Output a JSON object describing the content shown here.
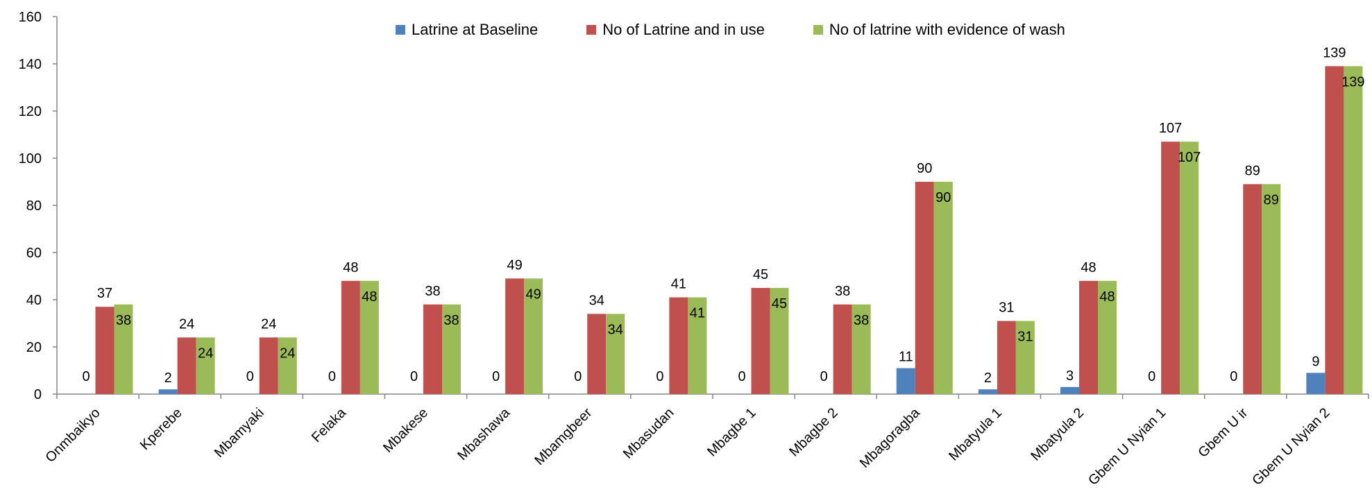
{
  "chart_data": {
    "type": "bar",
    "categories": [
      "Onmbaikyo",
      "Kperebe",
      "Mbamyaki",
      "Felaka",
      "Mbakese",
      "Mbashawa",
      "Mbamgbeer",
      "Mbasudan",
      "Mbagbe 1",
      "Mbagbe 2",
      "Mbagoragba",
      "Mbatyula 1",
      "Mbatyula 2",
      "Gbem U Nyian 1",
      "Gbem U ir",
      "Gbem U Nyian 2"
    ],
    "series": [
      {
        "name": "Latrine at Baseline",
        "color": "#4F81BD",
        "values": [
          0,
          2,
          0,
          0,
          0,
          0,
          0,
          0,
          0,
          0,
          11,
          2,
          3,
          0,
          0,
          9
        ]
      },
      {
        "name": "No of Latrine and in use",
        "color": "#C0504D",
        "values": [
          37,
          24,
          24,
          48,
          38,
          49,
          34,
          41,
          45,
          38,
          90,
          31,
          48,
          107,
          89,
          139
        ]
      },
      {
        "name": "No of latrine with evidence of wash",
        "color": "#9BBB59",
        "values": [
          38,
          24,
          24,
          48,
          38,
          49,
          34,
          41,
          45,
          38,
          90,
          31,
          48,
          107,
          89,
          139
        ]
      }
    ],
    "ylim": [
      0,
      160
    ],
    "yticks": [
      0,
      20,
      40,
      60,
      80,
      100,
      120,
      140,
      160
    ],
    "xlabel": "",
    "ylabel": "",
    "title": "",
    "legend_position": "top-center",
    "grid": false
  }
}
